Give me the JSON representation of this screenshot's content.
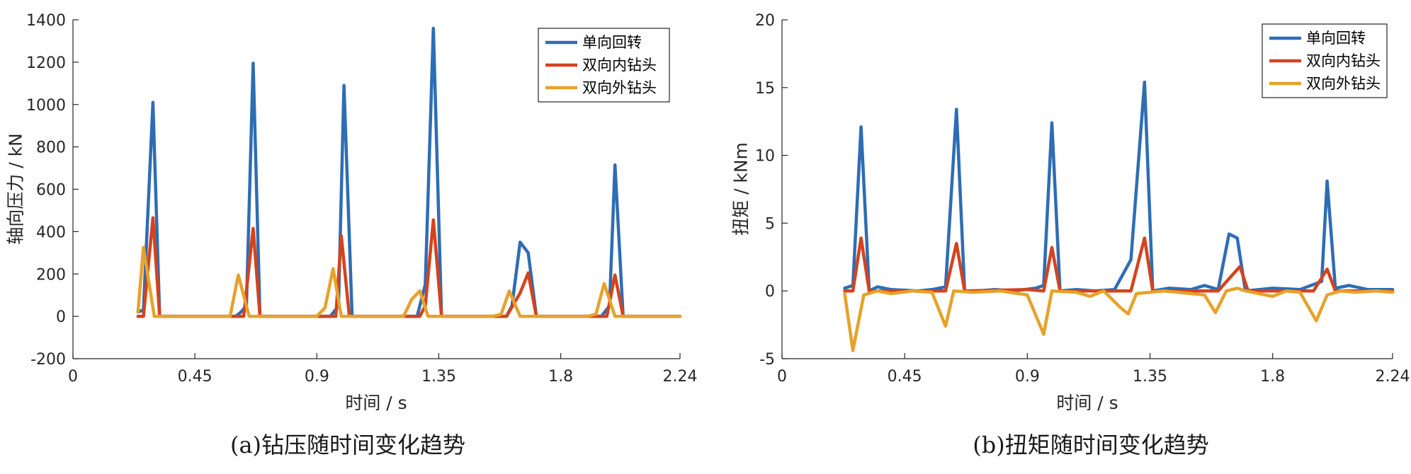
{
  "chart_data": [
    {
      "type": "line",
      "caption": "(a)钻压随时间变化趋势",
      "xlabel": "时间 / s",
      "ylabel": "轴向压力 / kN",
      "xlim": [
        0,
        2.24
      ],
      "ylim": [
        -200,
        1400
      ],
      "xticks": [
        "0",
        "0.45",
        "0.9",
        "1.35",
        "1.8",
        "2.24"
      ],
      "yticks": [
        "-200",
        "0",
        "200",
        "400",
        "600",
        "800",
        "1000",
        "1200",
        "1400"
      ],
      "legend_position": "top-right",
      "series": [
        {
          "name": "单向回转",
          "color": "#2E6DB4",
          "points": [
            [
              0.24,
              20
            ],
            [
              0.26,
              30
            ],
            [
              0.295,
              1010
            ],
            [
              0.32,
              0
            ],
            [
              0.35,
              0
            ],
            [
              0.6,
              0
            ],
            [
              0.62,
              20
            ],
            [
              0.64,
              50
            ],
            [
              0.665,
              1195
            ],
            [
              0.69,
              0
            ],
            [
              0.75,
              0
            ],
            [
              0.95,
              0
            ],
            [
              0.98,
              50
            ],
            [
              1.0,
              1090
            ],
            [
              1.03,
              0
            ],
            [
              1.1,
              0
            ],
            [
              1.27,
              0
            ],
            [
              1.3,
              150
            ],
            [
              1.33,
              1360
            ],
            [
              1.36,
              0
            ],
            [
              1.5,
              0
            ],
            [
              1.6,
              0
            ],
            [
              1.62,
              50
            ],
            [
              1.65,
              350
            ],
            [
              1.68,
              300
            ],
            [
              1.71,
              0
            ],
            [
              1.8,
              0
            ],
            [
              1.95,
              0
            ],
            [
              1.98,
              50
            ],
            [
              2.0,
              715
            ],
            [
              2.03,
              0
            ],
            [
              2.24,
              0
            ]
          ]
        },
        {
          "name": "双向内钻头",
          "color": "#D4431E",
          "points": [
            [
              0.24,
              0
            ],
            [
              0.26,
              0
            ],
            [
              0.295,
              465
            ],
            [
              0.32,
              0
            ],
            [
              0.6,
              0
            ],
            [
              0.63,
              0
            ],
            [
              0.665,
              415
            ],
            [
              0.69,
              0
            ],
            [
              0.95,
              0
            ],
            [
              0.97,
              0
            ],
            [
              0.99,
              380
            ],
            [
              1.02,
              0
            ],
            [
              1.28,
              0
            ],
            [
              1.3,
              50
            ],
            [
              1.33,
              455
            ],
            [
              1.36,
              0
            ],
            [
              1.55,
              0
            ],
            [
              1.6,
              0
            ],
            [
              1.65,
              110
            ],
            [
              1.68,
              205
            ],
            [
              1.71,
              0
            ],
            [
              1.95,
              0
            ],
            [
              1.97,
              0
            ],
            [
              2.0,
              195
            ],
            [
              2.03,
              0
            ],
            [
              2.24,
              0
            ]
          ]
        },
        {
          "name": "双向外钻头",
          "color": "#E6A22A",
          "points": [
            [
              0.24,
              20
            ],
            [
              0.26,
              325
            ],
            [
              0.3,
              0
            ],
            [
              0.55,
              0
            ],
            [
              0.58,
              0
            ],
            [
              0.61,
              195
            ],
            [
              0.65,
              0
            ],
            [
              0.9,
              0
            ],
            [
              0.93,
              40
            ],
            [
              0.96,
              225
            ],
            [
              0.99,
              0
            ],
            [
              1.22,
              0
            ],
            [
              1.25,
              80
            ],
            [
              1.28,
              120
            ],
            [
              1.31,
              0
            ],
            [
              1.55,
              0
            ],
            [
              1.58,
              10
            ],
            [
              1.61,
              120
            ],
            [
              1.65,
              0
            ],
            [
              1.9,
              0
            ],
            [
              1.93,
              10
            ],
            [
              1.96,
              155
            ],
            [
              2.0,
              0
            ],
            [
              2.24,
              0
            ]
          ]
        }
      ]
    },
    {
      "type": "line",
      "caption": "(b)扭矩随时间变化趋势",
      "xlabel": "时间 / s",
      "ylabel": "扭矩 / kNm",
      "xlim": [
        0,
        2.24
      ],
      "ylim": [
        -5,
        20
      ],
      "xticks": [
        "0",
        "0.45",
        "0.9",
        "1.35",
        "1.8",
        "2.24"
      ],
      "yticks": [
        "-5",
        "0",
        "5",
        "10",
        "15",
        "20"
      ],
      "legend_position": "top-right",
      "series": [
        {
          "name": "单向回转",
          "color": "#2E6DB4",
          "points": [
            [
              0.23,
              0.2
            ],
            [
              0.26,
              0.4
            ],
            [
              0.29,
              12.1
            ],
            [
              0.32,
              0
            ],
            [
              0.35,
              0.3
            ],
            [
              0.4,
              0.1
            ],
            [
              0.5,
              0
            ],
            [
              0.55,
              0.1
            ],
            [
              0.6,
              0.3
            ],
            [
              0.64,
              13.4
            ],
            [
              0.67,
              0
            ],
            [
              0.72,
              0
            ],
            [
              0.78,
              0.1
            ],
            [
              0.85,
              0
            ],
            [
              0.93,
              0.2
            ],
            [
              0.96,
              0.4
            ],
            [
              0.99,
              12.4
            ],
            [
              1.02,
              0
            ],
            [
              1.08,
              0.1
            ],
            [
              1.15,
              0
            ],
            [
              1.22,
              0.1
            ],
            [
              1.28,
              2.3
            ],
            [
              1.33,
              15.4
            ],
            [
              1.36,
              0
            ],
            [
              1.42,
              0.2
            ],
            [
              1.5,
              0.1
            ],
            [
              1.55,
              0.4
            ],
            [
              1.6,
              0.1
            ],
            [
              1.64,
              4.2
            ],
            [
              1.67,
              3.9
            ],
            [
              1.7,
              0
            ],
            [
              1.8,
              0.2
            ],
            [
              1.9,
              0.1
            ],
            [
              1.98,
              0.7
            ],
            [
              2.0,
              8.1
            ],
            [
              2.03,
              0.2
            ],
            [
              2.08,
              0.4
            ],
            [
              2.15,
              0.1
            ],
            [
              2.24,
              0.1
            ]
          ]
        },
        {
          "name": "双向内钻头",
          "color": "#D4431E",
          "points": [
            [
              0.23,
              0
            ],
            [
              0.26,
              0
            ],
            [
              0.29,
              3.9
            ],
            [
              0.32,
              0
            ],
            [
              0.6,
              0
            ],
            [
              0.64,
              3.5
            ],
            [
              0.67,
              0
            ],
            [
              0.9,
              0.1
            ],
            [
              0.96,
              0
            ],
            [
              0.99,
              3.2
            ],
            [
              1.02,
              0
            ],
            [
              1.28,
              0
            ],
            [
              1.33,
              3.9
            ],
            [
              1.36,
              0
            ],
            [
              1.6,
              0
            ],
            [
              1.68,
              1.8
            ],
            [
              1.71,
              0
            ],
            [
              1.95,
              0
            ],
            [
              2.0,
              1.6
            ],
            [
              2.03,
              0
            ],
            [
              2.24,
              0
            ]
          ]
        },
        {
          "name": "双向外钻头",
          "color": "#E6A22A",
          "points": [
            [
              0.23,
              -0.2
            ],
            [
              0.26,
              -4.4
            ],
            [
              0.3,
              -0.3
            ],
            [
              0.35,
              0
            ],
            [
              0.4,
              -0.2
            ],
            [
              0.48,
              0
            ],
            [
              0.55,
              -0.1
            ],
            [
              0.6,
              -2.6
            ],
            [
              0.63,
              0
            ],
            [
              0.7,
              -0.1
            ],
            [
              0.8,
              0
            ],
            [
              0.9,
              -0.3
            ],
            [
              0.96,
              -3.2
            ],
            [
              0.99,
              0
            ],
            [
              1.08,
              -0.1
            ],
            [
              1.13,
              -0.4
            ],
            [
              1.18,
              0
            ],
            [
              1.24,
              -1.2
            ],
            [
              1.27,
              -1.7
            ],
            [
              1.3,
              -0.2
            ],
            [
              1.4,
              0
            ],
            [
              1.55,
              -0.3
            ],
            [
              1.59,
              -1.6
            ],
            [
              1.63,
              0
            ],
            [
              1.67,
              0.2
            ],
            [
              1.7,
              0
            ],
            [
              1.8,
              -0.4
            ],
            [
              1.85,
              0
            ],
            [
              1.9,
              -0.1
            ],
            [
              1.96,
              -2.2
            ],
            [
              2.0,
              -0.3
            ],
            [
              2.05,
              0
            ],
            [
              2.1,
              -0.1
            ],
            [
              2.18,
              0
            ],
            [
              2.24,
              -0.1
            ]
          ]
        }
      ]
    }
  ]
}
